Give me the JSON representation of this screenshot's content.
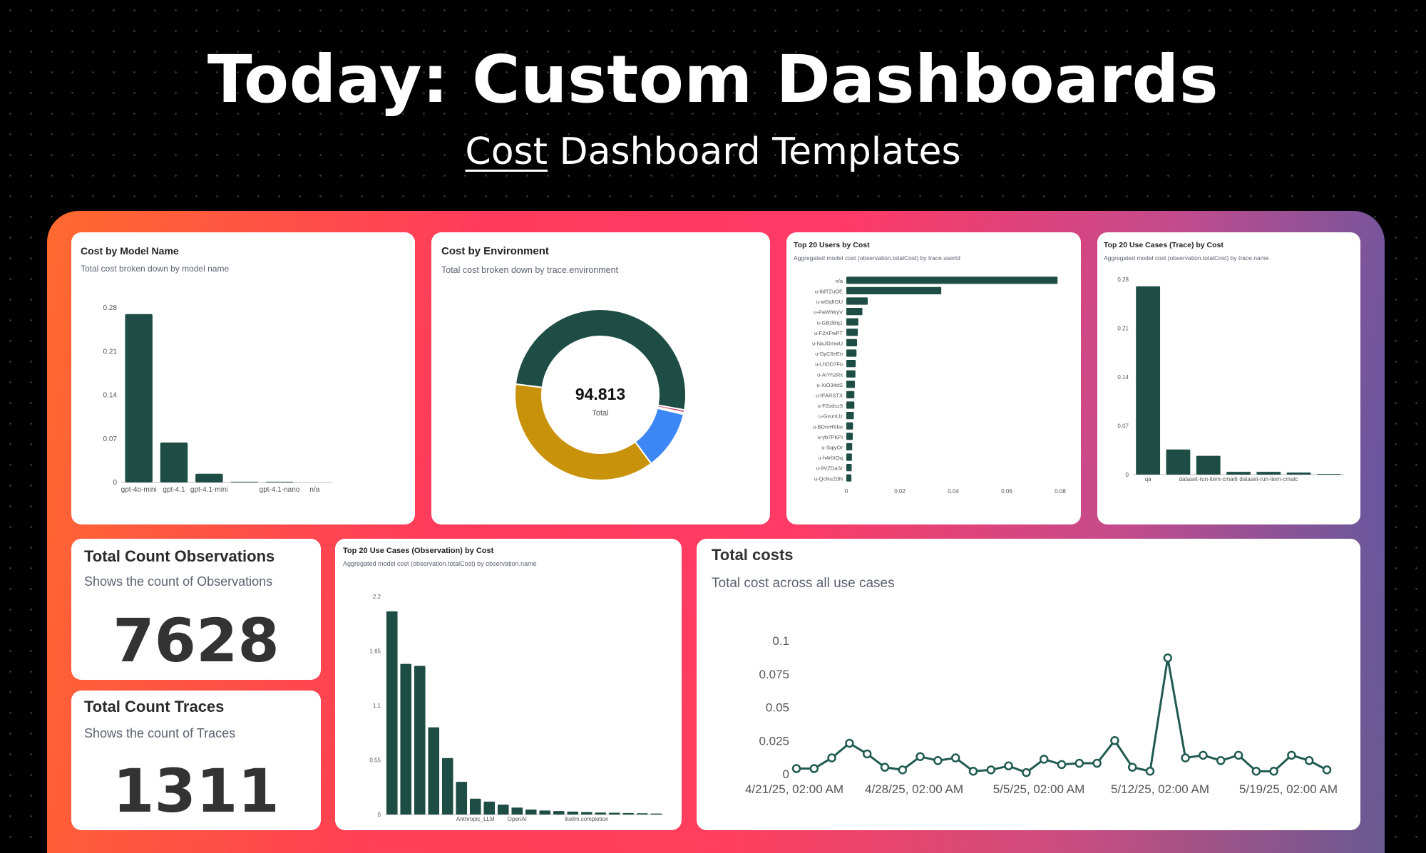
{
  "header": {
    "title": "Today: Custom Dashboards",
    "subtitle_underlined": "Cost",
    "subtitle_rest": " Dashboard Templates"
  },
  "colors": {
    "dark_green": "#1e4d45",
    "bar_green": "#1f5a50",
    "amber": "#c8920a",
    "blue": "#3c86f5",
    "line": "#1f5a50"
  },
  "widgets": {
    "model_cost": {
      "title": "Cost by Model Name",
      "description": "Total cost broken down by model name"
    },
    "environment_cost": {
      "title": "Cost by Environment",
      "description": "Total cost broken down by trace.environment",
      "total_value": "94.813",
      "total_label": "Total"
    },
    "top_users": {
      "title": "Top 20 Users by Cost",
      "description": "Aggregated model cost (observation.totalCost) by trace.userId"
    },
    "top_use_cases_trace": {
      "title": "Top 20 Use Cases (Trace) by Cost",
      "description": "Aggregated model cost (observation.totalCost) by trace.name"
    },
    "count_observations": {
      "title": "Total Count Observations",
      "description": "Shows the count of Observations",
      "value": "7628"
    },
    "count_traces": {
      "title": "Total Count Traces",
      "description": "Shows the count of Traces",
      "value": "1311"
    },
    "top_use_cases_observation": {
      "title": "Top 20 Use Cases (Observation) by Cost",
      "description": "Aggregated model cost (observation.totalCost) by observation.name"
    },
    "total_costs": {
      "title": "Total costs",
      "description": "Total cost across all use cases"
    }
  },
  "chart_data": [
    {
      "id": "model_cost",
      "type": "bar",
      "categories": [
        "gpt-4o-mini",
        "gpt-4.1",
        "gpt-4.1-mini",
        "",
        "gpt-4.1-nano",
        "n/a"
      ],
      "values": [
        0.27,
        0.064,
        0.014,
        0.001,
        0.001,
        0
      ],
      "ylim": [
        0,
        0.28
      ],
      "yticks": [
        "0",
        "0.07",
        "0.14",
        "0.21",
        "0.28"
      ]
    },
    {
      "id": "environment_cost",
      "type": "pie",
      "slices": [
        {
          "value": 48.2,
          "color": "#1e4d45"
        },
        {
          "value": 0.5,
          "color": "#c44b6f"
        },
        {
          "value": 0.3,
          "color": "#e8a0b0"
        },
        {
          "value": 10.6,
          "color": "#3c86f5"
        },
        {
          "value": 35.2,
          "color": "#c8920a"
        }
      ]
    },
    {
      "id": "top_users",
      "type": "bar",
      "orientation": "horizontal",
      "categories": [
        "n/a",
        "u-8dTZuOE",
        "u-wDqfIOU",
        "u-PaWtWyV",
        "u-GBzlBq1",
        "u-F2XFwPT",
        "u-NaJGmwU",
        "u-DyC6eEn",
        "u-LhDD7Fo",
        "u-AIYhzRx",
        "u-XiO34dS",
        "u-tFARSTX",
        "u-F2odcz9",
        "u-GvuntJz",
        "u-BDmHSbe",
        "u-yb7PKPi",
        "u-SqiyOr",
        "u-h4rfXOq",
        "u-9VZDaSr",
        "u-QcNuZdN"
      ],
      "values": [
        0.079,
        0.0355,
        0.008,
        0.006,
        0.0045,
        0.0043,
        0.004,
        0.0038,
        0.0035,
        0.0034,
        0.0032,
        0.003,
        0.003,
        0.0028,
        0.0025,
        0.0024,
        0.0022,
        0.0021,
        0.002,
        0.0019
      ],
      "xlim": [
        0,
        0.08
      ],
      "xticks": [
        "0",
        "0.02",
        "0.04",
        "0.06",
        "0.08"
      ]
    },
    {
      "id": "top_use_cases_trace",
      "type": "bar",
      "categories": [
        "qa",
        "",
        "dataset-run-item-cmai6",
        "",
        "dataset-run-item-cmalc",
        "",
        ""
      ],
      "values": [
        0.27,
        0.036,
        0.027,
        0.004,
        0.004,
        0.003,
        0.001
      ],
      "ylim": [
        0,
        0.28
      ],
      "yticks": [
        "0",
        "0.07",
        "0.14",
        "0.21",
        "0.28"
      ]
    },
    {
      "id": "top_use_cases_observation",
      "type": "bar",
      "categories": [
        "",
        "",
        "",
        "",
        "",
        "",
        "Anthropic_LLM",
        "",
        "",
        "OpenAI",
        "",
        "",
        "",
        "",
        "litellm.completion",
        "",
        "",
        "",
        "",
        ""
      ],
      "values": [
        2.05,
        1.52,
        1.5,
        0.88,
        0.57,
        0.33,
        0.16,
        0.13,
        0.1,
        0.07,
        0.05,
        0.04,
        0.035,
        0.03,
        0.025,
        0.02,
        0.018,
        0.015,
        0.013,
        0.01
      ],
      "ylim": [
        0,
        2.2
      ],
      "yticks": [
        "0",
        "0.55",
        "1.1",
        "1.65",
        "2.2"
      ]
    },
    {
      "id": "total_costs",
      "type": "line",
      "xticks": [
        "4/21/25, 02:00 AM",
        "4/28/25, 02:00 AM",
        "5/5/25, 02:00 AM",
        "5/12/25, 02:00 AM",
        "5/19/25, 02:00 AM"
      ],
      "yticks": [
        "0",
        "0.025",
        "0.05",
        "0.075",
        "0.1"
      ],
      "ylim": [
        0,
        0.1
      ],
      "values": [
        0.004,
        0.004,
        0.012,
        0.023,
        0.015,
        0.005,
        0.003,
        0.013,
        0.01,
        0.012,
        0.002,
        0.003,
        0.006,
        0.001,
        0.011,
        0.007,
        0.008,
        0.008,
        0.025,
        0.005,
        0.002,
        0.087,
        0.012,
        0.014,
        0.01,
        0.014,
        0.002,
        0.002,
        0.014,
        0.01,
        0.003
      ]
    }
  ]
}
